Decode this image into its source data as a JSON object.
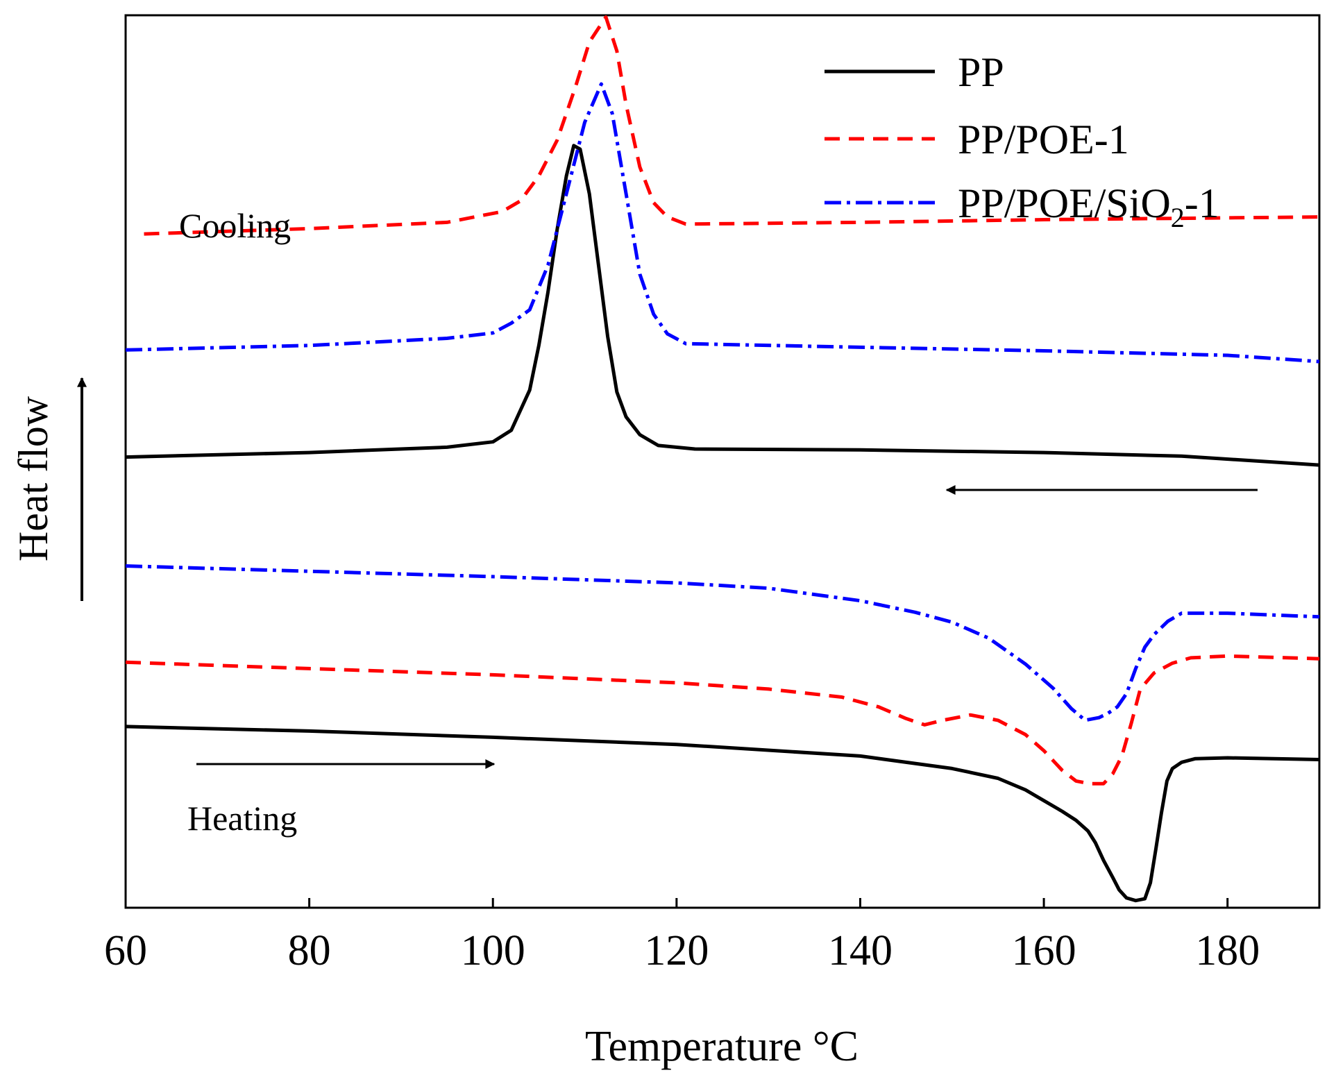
{
  "chart_data": {
    "type": "line",
    "title": "",
    "xlabel": "Temperature °C",
    "ylabel": "Heat flow",
    "xlim": [
      60,
      190
    ],
    "ylim": [
      0,
      100
    ],
    "x_ticks": [
      60,
      80,
      100,
      120,
      140,
      160,
      180
    ],
    "x_tick_labels": [
      "60",
      "80",
      "100",
      "120",
      "140",
      "160",
      "180"
    ],
    "y_ticks_shown": false,
    "grid": false,
    "legend_position": "top-right",
    "annotations": {
      "cooling": "Cooling",
      "heating": "Heating",
      "cooling_arrow_direction": "left",
      "heating_arrow_direction": "right",
      "ylabel_arrow_direction": "up"
    },
    "legend": [
      {
        "label": "PP",
        "series": "PP",
        "style": "solid",
        "color": "#000000"
      },
      {
        "label": "PP/POE-1",
        "series": "PP/POE-1",
        "style": "dashed",
        "color": "#ff0000"
      },
      {
        "label_main": "PP/POE/SiO",
        "label_sub": "2",
        "label_tail": "-1",
        "series": "PP/POE/SiO2-1",
        "style": "dashdot",
        "color": "#0000ff"
      }
    ],
    "series": [
      {
        "name": "PP",
        "segment": "cooling",
        "style": "solid",
        "color": "#000000",
        "points": [
          [
            60,
            50.5
          ],
          [
            80,
            51.0
          ],
          [
            95,
            51.6
          ],
          [
            100,
            52.2
          ],
          [
            102,
            53.5
          ],
          [
            104,
            58
          ],
          [
            105,
            63
          ],
          [
            106,
            69
          ],
          [
            107,
            76
          ],
          [
            108,
            82
          ],
          [
            108.8,
            85.4
          ],
          [
            109.5,
            85
          ],
          [
            110.5,
            80
          ],
          [
            111.5,
            72
          ],
          [
            112.5,
            64
          ],
          [
            113.5,
            57.8
          ],
          [
            114.5,
            55
          ],
          [
            116,
            53
          ],
          [
            118,
            51.8
          ],
          [
            122,
            51.4
          ],
          [
            140,
            51.3
          ],
          [
            160,
            51.0
          ],
          [
            175,
            50.6
          ],
          [
            190,
            49.6
          ]
        ]
      },
      {
        "name": "PP/POE-1",
        "segment": "cooling",
        "style": "dashed",
        "color": "#ff0000",
        "points": [
          [
            62,
            75.5
          ],
          [
            80,
            76.1
          ],
          [
            95,
            76.8
          ],
          [
            101,
            78.0
          ],
          [
            103,
            79.2
          ],
          [
            105,
            82
          ],
          [
            107,
            86
          ],
          [
            109,
            92
          ],
          [
            110.5,
            97
          ],
          [
            112.3,
            99.8
          ],
          [
            113.5,
            96
          ],
          [
            114.5,
            90
          ],
          [
            116,
            83
          ],
          [
            117.5,
            79
          ],
          [
            119,
            77.4
          ],
          [
            121,
            76.6
          ],
          [
            140,
            76.8
          ],
          [
            160,
            77.1
          ],
          [
            190,
            77.4
          ]
        ]
      },
      {
        "name": "PP/POE/SiO2-1",
        "segment": "cooling",
        "style": "dashdot",
        "color": "#0000ff",
        "points": [
          [
            60,
            62.5
          ],
          [
            80,
            63.0
          ],
          [
            95,
            63.8
          ],
          [
            100,
            64.4
          ],
          [
            102,
            65.5
          ],
          [
            104,
            67
          ],
          [
            106,
            72
          ],
          [
            108,
            80
          ],
          [
            110,
            88
          ],
          [
            111.8,
            92.3
          ],
          [
            113,
            89
          ],
          [
            114.5,
            80
          ],
          [
            116,
            71
          ],
          [
            117.5,
            66.5
          ],
          [
            119,
            64.3
          ],
          [
            121,
            63.2
          ],
          [
            140,
            62.8
          ],
          [
            160,
            62.4
          ],
          [
            180,
            61.9
          ],
          [
            190,
            61.2
          ]
        ]
      },
      {
        "name": "PP/POE/SiO2-1",
        "segment": "heating",
        "style": "dashdot",
        "color": "#0000ff",
        "points": [
          [
            60,
            38.3
          ],
          [
            80,
            37.7
          ],
          [
            100,
            37.1
          ],
          [
            120,
            36.4
          ],
          [
            130,
            35.8
          ],
          [
            140,
            34.4
          ],
          [
            146,
            33.1
          ],
          [
            150,
            32.0
          ],
          [
            154,
            30.2
          ],
          [
            158,
            27.3
          ],
          [
            161,
            24.6
          ],
          [
            163,
            22.3
          ],
          [
            164.5,
            21.0
          ],
          [
            166,
            21.3
          ],
          [
            167,
            21.8
          ],
          [
            168,
            22.5
          ],
          [
            169,
            24
          ],
          [
            170,
            26.8
          ],
          [
            171,
            29.2
          ],
          [
            172,
            30.6
          ],
          [
            173.5,
            32.1
          ],
          [
            175,
            33.0
          ],
          [
            180,
            33.0
          ],
          [
            190,
            32.6
          ]
        ]
      },
      {
        "name": "PP/POE-1",
        "segment": "heating",
        "style": "dashed",
        "color": "#ff0000",
        "points": [
          [
            60,
            27.5
          ],
          [
            80,
            26.8
          ],
          [
            100,
            26.1
          ],
          [
            120,
            25.2
          ],
          [
            130,
            24.5
          ],
          [
            138,
            23.6
          ],
          [
            142,
            22.5
          ],
          [
            145,
            21.2
          ],
          [
            147,
            20.5
          ],
          [
            149,
            21.0
          ],
          [
            152,
            21.6
          ],
          [
            155,
            21.0
          ],
          [
            158,
            19.4
          ],
          [
            160,
            17.6
          ],
          [
            162,
            15.4
          ],
          [
            163.5,
            14.2
          ],
          [
            165,
            13.9
          ],
          [
            166.5,
            13.9
          ],
          [
            167.5,
            15
          ],
          [
            168.5,
            17
          ],
          [
            169.5,
            20.6
          ],
          [
            170.5,
            24.5
          ],
          [
            172,
            26.3
          ],
          [
            174,
            27.4
          ],
          [
            176,
            28.0
          ],
          [
            180,
            28.2
          ],
          [
            190,
            27.9
          ]
        ]
      },
      {
        "name": "PP",
        "segment": "heating",
        "style": "solid",
        "color": "#000000",
        "points": [
          [
            60,
            20.3
          ],
          [
            80,
            19.8
          ],
          [
            100,
            19.1
          ],
          [
            120,
            18.3
          ],
          [
            140,
            17.0
          ],
          [
            150,
            15.6
          ],
          [
            155,
            14.5
          ],
          [
            158,
            13.2
          ],
          [
            160,
            12.0
          ],
          [
            162,
            10.8
          ],
          [
            163.5,
            9.8
          ],
          [
            164.8,
            8.6
          ],
          [
            165.6,
            7.3
          ],
          [
            166.5,
            5.3
          ],
          [
            167.5,
            3.4
          ],
          [
            168.2,
            2.0
          ],
          [
            169,
            1.1
          ],
          [
            170,
            0.8
          ],
          [
            171,
            1.0
          ],
          [
            171.6,
            2.8
          ],
          [
            172.2,
            6.6
          ],
          [
            172.8,
            10.6
          ],
          [
            173.4,
            14.2
          ],
          [
            174,
            15.6
          ],
          [
            175,
            16.3
          ],
          [
            176.5,
            16.7
          ],
          [
            180,
            16.8
          ],
          [
            190,
            16.6
          ]
        ]
      }
    ]
  }
}
